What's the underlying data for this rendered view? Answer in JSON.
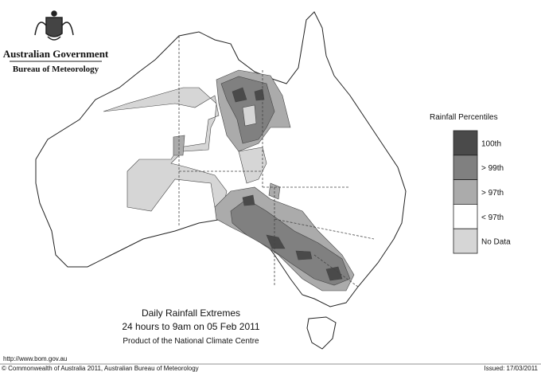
{
  "header": {
    "org": "Australian Government",
    "dept": "Bureau of Meteorology"
  },
  "legend": {
    "title": "Rainfall Percentiles",
    "items": [
      {
        "label": "100th",
        "color": "#4a4a4a"
      },
      {
        "label": "> 99th",
        "color": "#808080"
      },
      {
        "label": "> 97th",
        "color": "#ababab"
      },
      {
        "label": "< 97th",
        "color": "#ffffff"
      },
      {
        "label": "No Data",
        "color": "#d6d6d6"
      }
    ]
  },
  "caption": {
    "title": "Daily Rainfall Extremes",
    "subtitle": "24 hours to 9am on 05 Feb 2011",
    "credit": "Product of the National Climate Centre"
  },
  "footer": {
    "url": "http://www.bom.gov.au",
    "copyright": "© Commonwealth of Australia 2011, Australian Bureau of Meteorology",
    "issued": "Issued: 17/03/2011"
  }
}
